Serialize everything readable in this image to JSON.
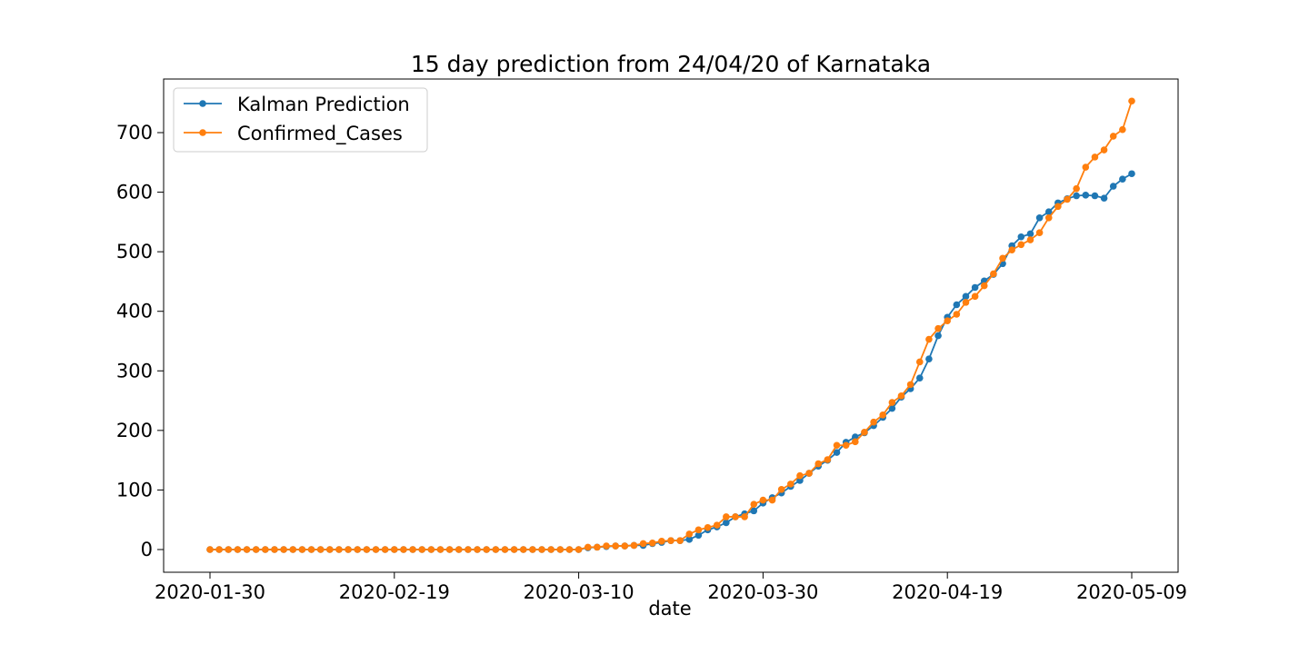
{
  "chart_data": {
    "type": "line",
    "title": "15 day prediction from 24/04/20 of Karnataka",
    "xlabel": "date",
    "ylabel": "",
    "x_start": "2020-01-30",
    "x_end": "2020-05-09",
    "x_ticks": [
      "2020-01-30",
      "2020-02-19",
      "2020-03-10",
      "2020-03-30",
      "2020-04-19",
      "2020-05-09"
    ],
    "y_ticks": [
      0,
      100,
      200,
      300,
      400,
      500,
      600,
      700
    ],
    "ylim": [
      -38,
      790
    ],
    "grid": false,
    "legend_position": "top-left",
    "series": [
      {
        "name": "Kalman Prediction",
        "color": "#1f77b4",
        "points": [
          [
            "2020-01-30",
            0
          ],
          [
            "2020-03-10",
            0
          ],
          [
            "2020-03-11",
            3
          ],
          [
            "2020-03-12",
            4
          ],
          [
            "2020-03-13",
            5
          ],
          [
            "2020-03-14",
            6
          ],
          [
            "2020-03-15",
            6
          ],
          [
            "2020-03-16",
            7
          ],
          [
            "2020-03-17",
            7
          ],
          [
            "2020-03-18",
            10
          ],
          [
            "2020-03-19",
            12
          ],
          [
            "2020-03-20",
            15
          ],
          [
            "2020-03-21",
            15
          ],
          [
            "2020-03-22",
            17
          ],
          [
            "2020-03-23",
            24
          ],
          [
            "2020-03-24",
            33
          ],
          [
            "2020-03-25",
            38
          ],
          [
            "2020-03-26",
            45
          ],
          [
            "2020-03-27",
            55
          ],
          [
            "2020-03-28",
            60
          ],
          [
            "2020-03-29",
            65
          ],
          [
            "2020-03-30",
            78
          ],
          [
            "2020-03-31",
            87
          ],
          [
            "2020-04-01",
            95
          ],
          [
            "2020-04-02",
            106
          ],
          [
            "2020-04-03",
            116
          ],
          [
            "2020-04-04",
            128
          ],
          [
            "2020-04-05",
            140
          ],
          [
            "2020-04-06",
            150
          ],
          [
            "2020-04-07",
            163
          ],
          [
            "2020-04-08",
            180
          ],
          [
            "2020-04-09",
            189
          ],
          [
            "2020-04-10",
            196
          ],
          [
            "2020-04-11",
            208
          ],
          [
            "2020-04-12",
            222
          ],
          [
            "2020-04-13",
            237
          ],
          [
            "2020-04-14",
            256
          ],
          [
            "2020-04-15",
            270
          ],
          [
            "2020-04-16",
            288
          ],
          [
            "2020-04-17",
            320
          ],
          [
            "2020-04-18",
            359
          ],
          [
            "2020-04-19",
            390
          ],
          [
            "2020-04-20",
            411
          ],
          [
            "2020-04-21",
            425
          ],
          [
            "2020-04-22",
            440
          ],
          [
            "2020-04-23",
            451
          ],
          [
            "2020-04-24",
            462
          ],
          [
            "2020-04-25",
            480
          ],
          [
            "2020-04-26",
            510
          ],
          [
            "2020-04-27",
            525
          ],
          [
            "2020-04-28",
            530
          ],
          [
            "2020-04-29",
            557
          ],
          [
            "2020-04-30",
            567
          ],
          [
            "2020-05-01",
            582
          ],
          [
            "2020-05-02",
            589
          ],
          [
            "2020-05-03",
            594
          ],
          [
            "2020-05-04",
            595
          ],
          [
            "2020-05-05",
            594
          ],
          [
            "2020-05-06",
            590
          ],
          [
            "2020-05-07",
            610
          ],
          [
            "2020-05-08",
            622
          ],
          [
            "2020-05-09",
            631
          ]
        ]
      },
      {
        "name": "Confirmed_Cases",
        "color": "#ff7f0e",
        "points": [
          [
            "2020-01-30",
            0
          ],
          [
            "2020-03-10",
            0
          ],
          [
            "2020-03-11",
            4
          ],
          [
            "2020-03-12",
            4
          ],
          [
            "2020-03-13",
            6
          ],
          [
            "2020-03-14",
            6
          ],
          [
            "2020-03-15",
            6
          ],
          [
            "2020-03-16",
            7
          ],
          [
            "2020-03-17",
            10
          ],
          [
            "2020-03-18",
            11
          ],
          [
            "2020-03-19",
            14
          ],
          [
            "2020-03-20",
            15
          ],
          [
            "2020-03-21",
            15
          ],
          [
            "2020-03-22",
            26
          ],
          [
            "2020-03-23",
            33
          ],
          [
            "2020-03-24",
            37
          ],
          [
            "2020-03-25",
            41
          ],
          [
            "2020-03-26",
            55
          ],
          [
            "2020-03-27",
            55
          ],
          [
            "2020-03-28",
            55
          ],
          [
            "2020-03-29",
            76
          ],
          [
            "2020-03-30",
            83
          ],
          [
            "2020-03-31",
            83
          ],
          [
            "2020-04-01",
            101
          ],
          [
            "2020-04-02",
            110
          ],
          [
            "2020-04-03",
            124
          ],
          [
            "2020-04-04",
            128
          ],
          [
            "2020-04-05",
            144
          ],
          [
            "2020-04-06",
            151
          ],
          [
            "2020-04-07",
            175
          ],
          [
            "2020-04-08",
            175
          ],
          [
            "2020-04-09",
            181
          ],
          [
            "2020-04-10",
            197
          ],
          [
            "2020-04-11",
            214
          ],
          [
            "2020-04-12",
            226
          ],
          [
            "2020-04-13",
            247
          ],
          [
            "2020-04-14",
            258
          ],
          [
            "2020-04-15",
            277
          ],
          [
            "2020-04-16",
            315
          ],
          [
            "2020-04-17",
            353
          ],
          [
            "2020-04-18",
            371
          ],
          [
            "2020-04-19",
            384
          ],
          [
            "2020-04-20",
            395
          ],
          [
            "2020-04-21",
            415
          ],
          [
            "2020-04-22",
            425
          ],
          [
            "2020-04-23",
            443
          ],
          [
            "2020-04-24",
            463
          ],
          [
            "2020-04-25",
            489
          ],
          [
            "2020-04-26",
            503
          ],
          [
            "2020-04-27",
            512
          ],
          [
            "2020-04-28",
            520
          ],
          [
            "2020-04-29",
            532
          ],
          [
            "2020-04-30",
            557
          ],
          [
            "2020-05-01",
            576
          ],
          [
            "2020-05-02",
            588
          ],
          [
            "2020-05-03",
            606
          ],
          [
            "2020-05-04",
            642
          ],
          [
            "2020-05-05",
            659
          ],
          [
            "2020-05-06",
            671
          ],
          [
            "2020-05-07",
            694
          ],
          [
            "2020-05-08",
            705
          ],
          [
            "2020-05-09",
            753
          ]
        ]
      }
    ]
  }
}
